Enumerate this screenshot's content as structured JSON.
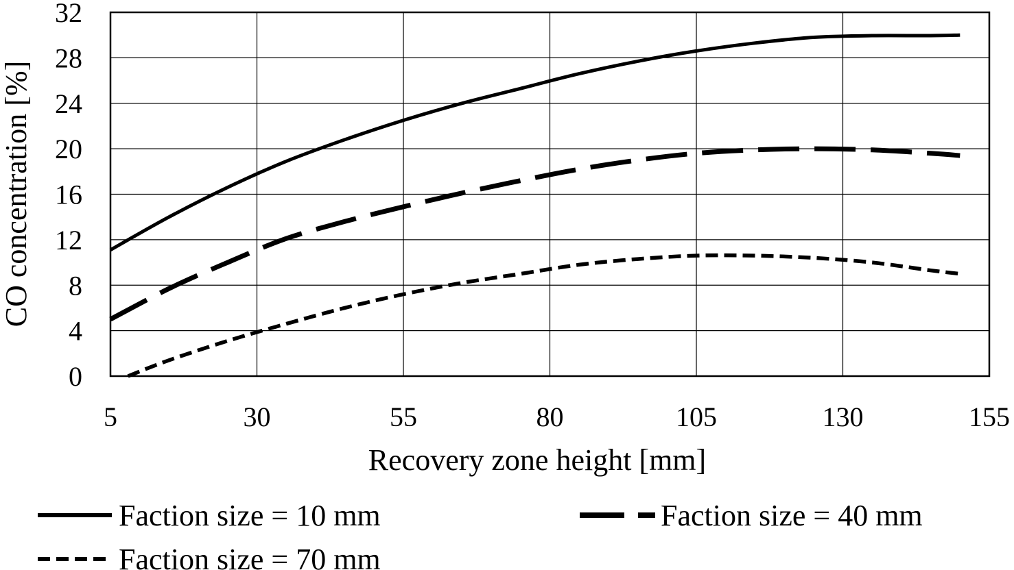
{
  "chart_data": {
    "type": "line",
    "title": "",
    "xlabel": "Recovery zone height [mm]",
    "ylabel": "CO concentration [%]",
    "xlim": [
      5,
      155
    ],
    "ylim": [
      0,
      32
    ],
    "xticks": [
      "5",
      "30",
      "55",
      "80",
      "105",
      "130",
      "155"
    ],
    "yticks": [
      "0",
      "4",
      "8",
      "12",
      "16",
      "20",
      "24",
      "28",
      "32"
    ],
    "grid": true,
    "legend_position": "bottom",
    "series": [
      {
        "name": "Faction size = 10 mm",
        "style": "solid",
        "x": [
          5,
          15,
          25,
          35,
          45,
          55,
          65,
          75,
          85,
          95,
          105,
          115,
          125,
          135,
          145,
          150
        ],
        "y": [
          11.1,
          14.0,
          16.6,
          18.9,
          20.8,
          22.5,
          24.0,
          25.3,
          26.6,
          27.7,
          28.6,
          29.3,
          29.8,
          29.95,
          29.95,
          30.0
        ]
      },
      {
        "name": "Faction size = 40 mm",
        "style": "long-dash",
        "x": [
          5,
          15,
          25,
          35,
          45,
          55,
          65,
          75,
          85,
          95,
          105,
          115,
          125,
          135,
          145,
          150
        ],
        "y": [
          5.0,
          7.7,
          10.0,
          12.1,
          13.6,
          14.9,
          16.1,
          17.2,
          18.2,
          19.0,
          19.6,
          19.9,
          20.0,
          19.9,
          19.6,
          19.4
        ]
      },
      {
        "name": "Faction size = 70 mm",
        "style": "short-dash",
        "x": [
          8,
          15,
          25,
          35,
          45,
          55,
          65,
          75,
          85,
          95,
          105,
          115,
          125,
          135,
          145,
          150
        ],
        "y": [
          0.0,
          1.4,
          3.1,
          4.6,
          6.0,
          7.2,
          8.2,
          9.0,
          9.8,
          10.3,
          10.6,
          10.6,
          10.4,
          10.0,
          9.3,
          9.0
        ]
      }
    ]
  }
}
